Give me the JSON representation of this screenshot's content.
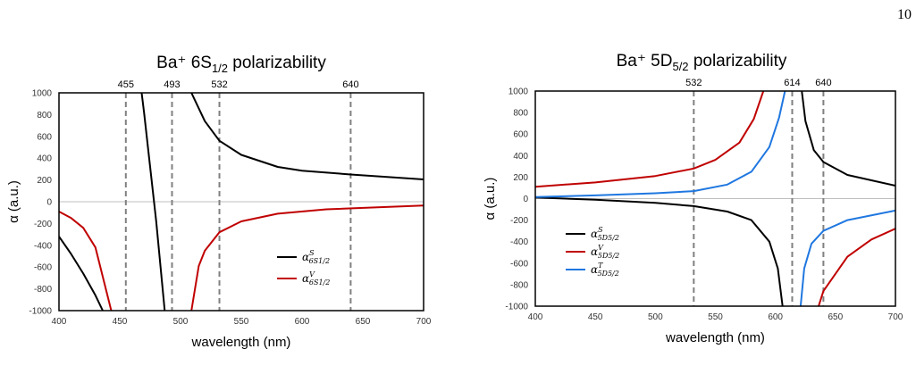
{
  "page": {
    "number": "10"
  },
  "chart_data": [
    {
      "type": "line",
      "title": "Ba⁺ 6S1/2 polarizability",
      "title_parts": {
        "main": "Ba⁺ 6S",
        "sub": "1/2",
        "tail": " polarizability"
      },
      "xlabel": "wavelength (nm)",
      "ylabel": "α (a.u.)",
      "xlim": [
        400,
        700
      ],
      "ylim": [
        -1000,
        1000
      ],
      "xticks": [
        "400",
        "450",
        "500",
        "550",
        "600",
        "650",
        "700"
      ],
      "yticks": [
        "1000",
        "800",
        "600",
        "400",
        "200",
        "0",
        "-200",
        "-400",
        "-600",
        "-800",
        "-1000"
      ],
      "grid": false,
      "vertical_markers": [
        {
          "label": "455",
          "x": 455
        },
        {
          "label": "493",
          "x": 493
        },
        {
          "label": "532",
          "x": 532
        },
        {
          "label": "640",
          "x": 640
        }
      ],
      "legend_position": "bottom-right",
      "series": [
        {
          "name": "α^S_{6S1/2}",
          "legend": {
            "base": "α",
            "sup": "S",
            "sub": "6S1/2"
          },
          "color": "#000000",
          "segments": [
            {
              "x": [
                400,
                410,
                420,
                430,
                436
              ],
              "y": [
                -320,
                -480,
                -660,
                -860,
                -1000
              ]
            },
            {
              "x": [
                468,
                470,
                475,
                480,
                487
              ],
              "y": [
                1000,
                820,
                320,
                -180,
                -1000
              ]
            },
            {
              "x": [
                509,
                520,
                532,
                550,
                580,
                600,
                640,
                700
              ],
              "y": [
                1000,
                740,
                560,
                430,
                320,
                285,
                250,
                205
              ]
            }
          ]
        },
        {
          "name": "α^V_{6S1/2}",
          "legend": {
            "base": "α",
            "sup": "V",
            "sub": "6S1/2"
          },
          "color": "#c00000",
          "segments": [
            {
              "x": [
                400,
                410,
                420,
                430,
                443
              ],
              "y": [
                -90,
                -150,
                -240,
                -420,
                -1000
              ]
            },
            {
              "x": [
                509,
                515,
                520,
                532,
                550,
                580,
                620,
                700
              ],
              "y": [
                -1000,
                -590,
                -450,
                -280,
                -180,
                -110,
                -70,
                -35
              ]
            }
          ]
        }
      ]
    },
    {
      "type": "line",
      "title": "Ba⁺ 5D5/2 polarizability",
      "title_parts": {
        "main": "Ba⁺ 5D",
        "sub": "5/2",
        "tail": " polarizability"
      },
      "xlabel": "wavelength (nm)",
      "ylabel": "α (a.u.)",
      "xlim": [
        400,
        700
      ],
      "ylim": [
        -1000,
        1000
      ],
      "xticks": [
        "400",
        "450",
        "500",
        "550",
        "600",
        "650",
        "700"
      ],
      "yticks": [
        "1000",
        "800",
        "600",
        "400",
        "200",
        "0",
        "-200",
        "-400",
        "-600",
        "-800",
        "-1000"
      ],
      "grid": false,
      "vertical_markers": [
        {
          "label": "532",
          "x": 532
        },
        {
          "label": "614",
          "x": 614
        },
        {
          "label": "640",
          "x": 640
        }
      ],
      "legend_position": "bottom-left",
      "series": [
        {
          "name": "α^S_{5D5/2}",
          "legend": {
            "base": "α",
            "sup": "S",
            "sub": "5D5/2"
          },
          "color": "#000000",
          "segments": [
            {
              "x": [
                400,
                450,
                500,
                532,
                560,
                580,
                595,
                602,
                606
              ],
              "y": [
                10,
                -10,
                -40,
                -70,
                -120,
                -200,
                -400,
                -650,
                -1000
              ]
            },
            {
              "x": [
                622,
                625,
                632,
                640,
                660,
                700
              ],
              "y": [
                1000,
                720,
                450,
                340,
                220,
                120
              ]
            }
          ]
        },
        {
          "name": "α^V_{5D5/2}",
          "legend": {
            "base": "α",
            "sup": "V",
            "sub": "5D5/2"
          },
          "color": "#c00000",
          "segments": [
            {
              "x": [
                400,
                450,
                500,
                532,
                550,
                570,
                582,
                590
              ],
              "y": [
                110,
                150,
                210,
                280,
                360,
                520,
                740,
                1000
              ]
            },
            {
              "x": [
                636,
                640,
                660,
                680,
                700
              ],
              "y": [
                -1000,
                -860,
                -540,
                -380,
                -280
              ]
            }
          ]
        },
        {
          "name": "α^T_{5D5/2}",
          "legend": {
            "base": "α",
            "sup": "T",
            "sub": "5D5/2"
          },
          "color": "#1f77e0",
          "segments": [
            {
              "x": [
                400,
                450,
                500,
                532,
                560,
                580,
                595,
                603,
                608
              ],
              "y": [
                15,
                30,
                50,
                70,
                130,
                250,
                480,
                750,
                1000
              ]
            },
            {
              "x": [
                621,
                624,
                630,
                640,
                660,
                700
              ],
              "y": [
                -1000,
                -650,
                -420,
                -300,
                -200,
                -110
              ]
            }
          ]
        }
      ]
    }
  ]
}
